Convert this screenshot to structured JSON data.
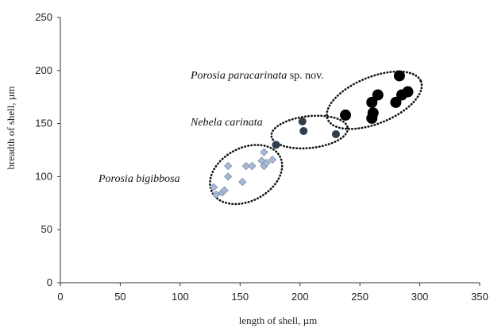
{
  "chart_data": {
    "type": "scatter",
    "xlabel": "length of shell,  µm",
    "ylabel": "breadth of shell, µm",
    "xlim": [
      0,
      350
    ],
    "ylim": [
      0,
      250
    ],
    "xticks": [
      0,
      50,
      100,
      150,
      200,
      250,
      300,
      350
    ],
    "yticks": [
      0,
      50,
      100,
      150,
      200,
      250
    ],
    "grid": false,
    "series": [
      {
        "name": "Porosia bigibbosa",
        "marker": "diamond",
        "color": "#a9b9d3",
        "stroke": "#7c8fb0",
        "points": [
          [
            128,
            90
          ],
          [
            130,
            83
          ],
          [
            135,
            85
          ],
          [
            137,
            87
          ],
          [
            140,
            110
          ],
          [
            140,
            100
          ],
          [
            152,
            95
          ],
          [
            155,
            110
          ],
          [
            160,
            110
          ],
          [
            168,
            115
          ],
          [
            170,
            123
          ],
          [
            170,
            110
          ],
          [
            172,
            113
          ],
          [
            177,
            116
          ]
        ]
      },
      {
        "name": "Nebela carinata",
        "marker": "circle",
        "color": "#2f3d4d",
        "points": [
          [
            180,
            130
          ],
          [
            202,
            152
          ],
          [
            203,
            143
          ],
          [
            230,
            140
          ]
        ]
      },
      {
        "name": "Porosia paracarinata",
        "marker": "circle-large",
        "color": "#000000",
        "points": [
          [
            238,
            158
          ],
          [
            260,
            155
          ],
          [
            260,
            170
          ],
          [
            261,
            160
          ],
          [
            265,
            177
          ],
          [
            280,
            170
          ],
          [
            283,
            195
          ],
          [
            285,
            177
          ],
          [
            290,
            180
          ]
        ]
      }
    ],
    "annotations": [
      {
        "text": "Porosia bigibbosa",
        "italic": "Porosia bigibbosa",
        "rest": ""
      },
      {
        "text": "Nebela carinata",
        "italic": "Nebela carinata",
        "rest": ""
      },
      {
        "text": "Porosia paracarinata sp. nov.",
        "italic": "Porosia paracarinata",
        "rest": " sp. nov."
      }
    ],
    "ellipses": [
      {
        "cx": 155,
        "cy": 102,
        "rx": 32,
        "ry": 25,
        "rotate": -28
      },
      {
        "cx": 208,
        "cy": 142,
        "rx": 32,
        "ry": 15,
        "rotate": -6
      },
      {
        "cx": 262,
        "cy": 172,
        "rx": 42,
        "ry": 22,
        "rotate": -22
      }
    ]
  }
}
